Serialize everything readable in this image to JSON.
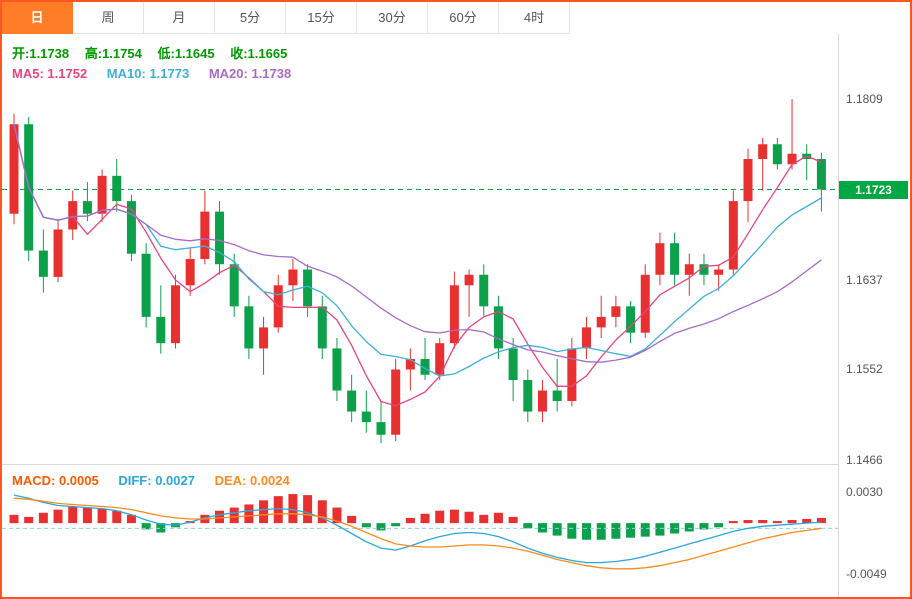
{
  "tabs": [
    {
      "label": "日",
      "active": true
    },
    {
      "label": "周",
      "active": false
    },
    {
      "label": "月",
      "active": false
    },
    {
      "label": "5分",
      "active": false
    },
    {
      "label": "15分",
      "active": false
    },
    {
      "label": "30分",
      "active": false
    },
    {
      "label": "60分",
      "active": false
    },
    {
      "label": "4时",
      "active": false
    }
  ],
  "ohlc_bar": {
    "open_label": "开:",
    "open": "1.1738",
    "high_label": "高:",
    "high": "1.1754",
    "low_label": "低:",
    "low": "1.1645",
    "close_label": "收:",
    "close": "1.1665"
  },
  "ma_bar": [
    {
      "label": "MA5:",
      "value": "1.1752"
    },
    {
      "label": "MA10:",
      "value": "1.1773"
    },
    {
      "label": "MA20:",
      "value": "1.1738"
    }
  ],
  "macd_bar": {
    "macd_label": "MACD:",
    "macd": "0.0005",
    "diff_label": "DIFF:",
    "diff": "0.0027",
    "dea_label": "DEA:",
    "dea": "0.0024"
  },
  "colors": {
    "accent_orange": "#ff7d26",
    "border_color": "#ff5722",
    "up": "#e93030",
    "down": "#0ca04a",
    "ma5": "#e8457f",
    "ma10": "#3bb0d9",
    "ma20": "#a86bc9",
    "diff_line": "#2aa7de",
    "dea_line": "#ff8a1e",
    "macd_label": "#ff5a00",
    "ohlc_text": "#009900",
    "price_flag_bg": "#00a843",
    "price_line": "#00a843",
    "macd_zero_line": "#8fd0e8",
    "axis_text": "#555555",
    "divider": "#d9d9d9"
  },
  "chart_data": {
    "type": "candlestick",
    "main": {
      "type": "candlestick",
      "note": "OHLC per bar, Chinese convention: red=up, green=down",
      "candles": [
        [
          1.17,
          1.1795,
          1.169,
          1.1785
        ],
        [
          1.1785,
          1.1792,
          1.1655,
          1.1665
        ],
        [
          1.1665,
          1.1685,
          1.1625,
          1.164
        ],
        [
          1.164,
          1.1695,
          1.1635,
          1.1685
        ],
        [
          1.1685,
          1.1722,
          1.1675,
          1.1712
        ],
        [
          1.1712,
          1.173,
          1.1693,
          1.17
        ],
        [
          1.17,
          1.1742,
          1.1692,
          1.1736
        ],
        [
          1.1736,
          1.1752,
          1.1702,
          1.1712
        ],
        [
          1.1712,
          1.1718,
          1.1655,
          1.1662
        ],
        [
          1.1662,
          1.1672,
          1.1592,
          1.1602
        ],
        [
          1.1602,
          1.1632,
          1.1567,
          1.1577
        ],
        [
          1.1577,
          1.1642,
          1.1572,
          1.1632
        ],
        [
          1.1632,
          1.1667,
          1.1622,
          1.1657
        ],
        [
          1.1657,
          1.1722,
          1.1652,
          1.1702
        ],
        [
          1.1702,
          1.1712,
          1.1642,
          1.1652
        ],
        [
          1.1652,
          1.1662,
          1.1602,
          1.1612
        ],
        [
          1.1612,
          1.1622,
          1.1562,
          1.1572
        ],
        [
          1.1572,
          1.1602,
          1.1547,
          1.1592
        ],
        [
          1.1592,
          1.1642,
          1.1587,
          1.1632
        ],
        [
          1.1632,
          1.1657,
          1.1617,
          1.1647
        ],
        [
          1.1647,
          1.1652,
          1.1602,
          1.1612
        ],
        [
          1.1612,
          1.1622,
          1.1562,
          1.1572
        ],
        [
          1.1572,
          1.1582,
          1.1522,
          1.1532
        ],
        [
          1.1532,
          1.1547,
          1.1502,
          1.1512
        ],
        [
          1.1512,
          1.1532,
          1.1492,
          1.1502
        ],
        [
          1.1502,
          1.1522,
          1.1482,
          1.149
        ],
        [
          1.149,
          1.1562,
          1.1484,
          1.1552
        ],
        [
          1.1552,
          1.1572,
          1.1532,
          1.1562
        ],
        [
          1.1562,
          1.1582,
          1.1542,
          1.1547
        ],
        [
          1.1547,
          1.1582,
          1.1542,
          1.1577
        ],
        [
          1.1577,
          1.1645,
          1.1572,
          1.1632
        ],
        [
          1.1632,
          1.1647,
          1.1602,
          1.1642
        ],
        [
          1.1642,
          1.1652,
          1.1602,
          1.1612
        ],
        [
          1.1612,
          1.1622,
          1.1562,
          1.1572
        ],
        [
          1.1572,
          1.1582,
          1.1522,
          1.1542
        ],
        [
          1.1542,
          1.1552,
          1.1502,
          1.1512
        ],
        [
          1.1512,
          1.1542,
          1.1502,
          1.1532
        ],
        [
          1.1532,
          1.1562,
          1.1512,
          1.1522
        ],
        [
          1.1522,
          1.1582,
          1.1517,
          1.1572
        ],
        [
          1.1572,
          1.1602,
          1.1562,
          1.1592
        ],
        [
          1.1592,
          1.1622,
          1.1582,
          1.1602
        ],
        [
          1.1602,
          1.1622,
          1.1592,
          1.1612
        ],
        [
          1.1612,
          1.1617,
          1.1577,
          1.1587
        ],
        [
          1.1587,
          1.1652,
          1.1582,
          1.1642
        ],
        [
          1.1642,
          1.1682,
          1.1632,
          1.1672
        ],
        [
          1.1672,
          1.1682,
          1.1632,
          1.1642
        ],
        [
          1.1642,
          1.1662,
          1.1622,
          1.1652
        ],
        [
          1.1652,
          1.1662,
          1.1632,
          1.1642
        ],
        [
          1.1642,
          1.1652,
          1.1627,
          1.1647
        ],
        [
          1.1647,
          1.1722,
          1.1642,
          1.1712
        ],
        [
          1.1712,
          1.1762,
          1.1692,
          1.1752
        ],
        [
          1.1752,
          1.1772,
          1.1722,
          1.1766
        ],
        [
          1.1766,
          1.1772,
          1.1742,
          1.1747
        ],
        [
          1.1747,
          1.1809,
          1.1742,
          1.1757
        ],
        [
          1.1757,
          1.1766,
          1.1732,
          1.1752
        ],
        [
          1.1752,
          1.1758,
          1.1702,
          1.1723
        ]
      ],
      "ma_periods": [
        5,
        10,
        20
      ],
      "y_ticks": [
        "1.1809",
        "1.1723",
        "1.1637",
        "1.1552",
        "1.1466"
      ],
      "y_range": [
        1.1466,
        1.1809
      ],
      "last_price": "1.1723",
      "grid": false,
      "legend_position": "top-left"
    },
    "macd": {
      "type": "bar",
      "title": "MACD(12,26,9)",
      "y_ticks": [
        "0.0030",
        "-0.0049"
      ],
      "y_range": [
        -0.0049,
        0.003
      ],
      "histogram": [
        0.0008,
        0.0006,
        0.001,
        0.0013,
        0.0016,
        0.0015,
        0.0014,
        0.0012,
        0.0008,
        -0.0006,
        -0.0009,
        -0.0004,
        0.0002,
        0.0008,
        0.0012,
        0.0015,
        0.0018,
        0.0022,
        0.0026,
        0.0028,
        0.0027,
        0.0022,
        0.0015,
        0.0007,
        -0.0004,
        -0.0007,
        -0.0003,
        0.0005,
        0.0009,
        0.0012,
        0.0013,
        0.0011,
        0.0008,
        0.001,
        0.0006,
        -0.0005,
        -0.0009,
        -0.0012,
        -0.0015,
        -0.0016,
        -0.0016,
        -0.0015,
        -0.0014,
        -0.0013,
        -0.0012,
        -0.001,
        -0.0008,
        -0.0006,
        -0.0004,
        0.0002,
        0.0003,
        0.0003,
        0.0002,
        0.0003,
        0.0004,
        0.0005
      ],
      "diff": [
        0.0027,
        0.0024,
        0.002,
        0.0017,
        0.0016,
        0.0015,
        0.0014,
        0.0012,
        0.0008,
        0.0003,
        -0.0001,
        -0.0002,
        0.0001,
        0.0005,
        0.0008,
        0.001,
        0.0012,
        0.0013,
        0.0014,
        0.0013,
        0.001,
        0.0005,
        -0.0002,
        -0.001,
        -0.0018,
        -0.0024,
        -0.0026,
        -0.0022,
        -0.0017,
        -0.0013,
        -0.001,
        -0.0009,
        -0.001,
        -0.0013,
        -0.0018,
        -0.0024,
        -0.0029,
        -0.0033,
        -0.0036,
        -0.0038,
        -0.0038,
        -0.0037,
        -0.0035,
        -0.0032,
        -0.0028,
        -0.0024,
        -0.002,
        -0.0016,
        -0.0012,
        -0.0008,
        -0.0005,
        -0.0003,
        -0.0002,
        -0.0001,
        0.0,
        0.0001
      ],
      "dea": [
        0.0024,
        0.0023,
        0.0021,
        0.0019,
        0.0018,
        0.0017,
        0.0016,
        0.0015,
        0.0013,
        0.001,
        0.0007,
        0.0005,
        0.0004,
        0.0004,
        0.0005,
        0.0006,
        0.0007,
        0.0008,
        0.0009,
        0.0009,
        0.0008,
        0.0006,
        0.0002,
        -0.0003,
        -0.0009,
        -0.0015,
        -0.002,
        -0.0022,
        -0.0023,
        -0.0023,
        -0.0022,
        -0.0021,
        -0.0021,
        -0.0022,
        -0.0024,
        -0.0027,
        -0.0031,
        -0.0035,
        -0.0038,
        -0.0041,
        -0.0043,
        -0.0044,
        -0.0044,
        -0.0043,
        -0.0041,
        -0.0038,
        -0.0035,
        -0.0031,
        -0.0027,
        -0.0023,
        -0.0019,
        -0.0015,
        -0.0012,
        -0.0009,
        -0.0007,
        -0.0005
      ],
      "grid": false
    }
  }
}
